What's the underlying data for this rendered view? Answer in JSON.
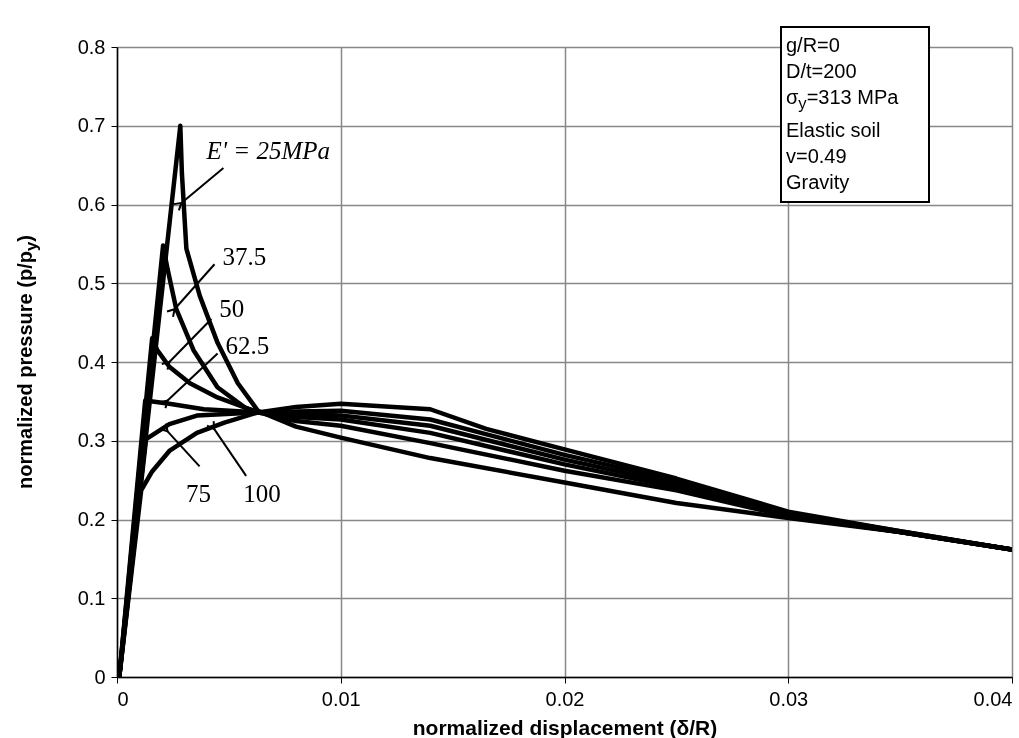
{
  "chart_data": {
    "type": "line",
    "xlabel": "normalized displacement (δ/R)",
    "ylabel": "normalized pressure (p/p$_{y}$)",
    "xlim": [
      0,
      0.04
    ],
    "ylim": [
      0,
      0.8
    ],
    "xticks": [
      0,
      0.01,
      0.02,
      0.03,
      0.04
    ],
    "yticks": [
      0,
      0.1,
      0.2,
      0.3,
      0.4,
      0.5,
      0.6,
      0.7,
      0.8
    ],
    "grid": true,
    "line_style": "solid",
    "annotations": [
      {
        "text": "E' = 25MPa",
        "x": 0.00288,
        "y": 0.602
      },
      {
        "text": "37.5",
        "x": 0.00257,
        "y": 0.467
      },
      {
        "text": "50",
        "x": 0.00234,
        "y": 0.4
      },
      {
        "text": "62.5",
        "x": 0.00226,
        "y": 0.351
      },
      {
        "text": "75",
        "x": 0.00226,
        "y": 0.312
      },
      {
        "text": "100",
        "x": 0.00434,
        "y": 0.315
      },
      "g/R=0",
      "D/t=200",
      "σ$_{y}$=313 MPa",
      "Elastic soil",
      "v=0.49",
      "Gravity"
    ],
    "series": [
      {
        "color": "#000000",
        "x": [
          0.0001,
          0.00283,
          0.0029,
          0.0031,
          0.0037,
          0.0045,
          0.0054,
          0.0063,
          0.008,
          0.01,
          0.014,
          0.02,
          0.025,
          0.03,
          0.035,
          0.04
        ],
        "values": [
          0,
          0.7,
          0.64,
          0.544,
          0.484,
          0.424,
          0.373,
          0.338,
          0.318,
          0.304,
          0.278,
          0.247,
          0.221,
          0.202,
          0.184,
          0.162
        ]
      },
      {
        "color": "#000000",
        "x": [
          0.0001,
          0.00206,
          0.00226,
          0.00265,
          0.00342,
          0.00449,
          0.00572,
          0.0063,
          0.008,
          0.01,
          0.014,
          0.02,
          0.025,
          0.03,
          0.035,
          0.04
        ],
        "values": [
          0,
          0.548,
          0.518,
          0.467,
          0.415,
          0.368,
          0.342,
          0.336,
          0.325,
          0.319,
          0.297,
          0.262,
          0.237,
          0.204,
          0.184,
          0.162
        ]
      },
      {
        "color": "#000000",
        "x": [
          0.0001,
          0.00157,
          0.0018,
          0.00234,
          0.00326,
          0.00449,
          0.0063,
          0.008,
          0.01,
          0.014,
          0.02,
          0.025,
          0.03,
          0.035,
          0.04
        ],
        "values": [
          0,
          0.43,
          0.415,
          0.394,
          0.373,
          0.355,
          0.336,
          0.33,
          0.327,
          0.31,
          0.27,
          0.241,
          0.205,
          0.184,
          0.162
        ]
      },
      {
        "color": "#000000",
        "x": [
          0.0001,
          0.00126,
          0.00234,
          0.00388,
          0.0063,
          0.008,
          0.01,
          0.014,
          0.02,
          0.025,
          0.03,
          0.035,
          0.04
        ],
        "values": [
          0,
          0.351,
          0.347,
          0.34,
          0.336,
          0.334,
          0.332,
          0.319,
          0.276,
          0.245,
          0.206,
          0.184,
          0.162
        ]
      },
      {
        "color": "#000000",
        "x": [
          0.0001,
          0.0013,
          0.00234,
          0.00357,
          0.0063,
          0.008,
          0.01,
          0.014,
          0.02,
          0.025,
          0.03,
          0.035,
          0.04
        ],
        "values": [
          0,
          0.302,
          0.321,
          0.332,
          0.336,
          0.337,
          0.338,
          0.327,
          0.282,
          0.249,
          0.208,
          0.185,
          0.162
        ]
      },
      {
        "color": "#000000",
        "x": [
          0.0001,
          0.00108,
          0.00157,
          0.00234,
          0.00357,
          0.0048,
          0.0063,
          0.008,
          0.01,
          0.014,
          0.0165,
          0.02,
          0.025,
          0.03,
          0.035,
          0.04
        ],
        "values": [
          0,
          0.237,
          0.261,
          0.287,
          0.31,
          0.323,
          0.336,
          0.343,
          0.347,
          0.34,
          0.315,
          0.289,
          0.252,
          0.21,
          0.185,
          0.162
        ]
      }
    ]
  }
}
